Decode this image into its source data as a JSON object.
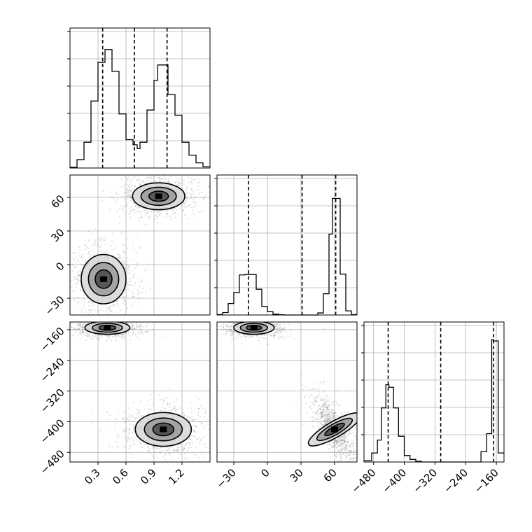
{
  "chart_data": {
    "type": "corner",
    "grid": true,
    "parameters": [
      {
        "range": [
          0.0,
          1.5
        ],
        "ticks": [
          0.3,
          0.6,
          0.9,
          1.2
        ],
        "tick_labels": [
          "0.3",
          "0.6",
          "0.9",
          "1.2"
        ],
        "quantiles": [
          0.35,
          0.69,
          1.04
        ]
      },
      {
        "range": [
          -45,
          80
        ],
        "ticks": [
          -30,
          0,
          30,
          60
        ],
        "tick_labels": [
          "−30",
          "0",
          "30",
          "60"
        ],
        "quantiles": [
          -17,
          31,
          61
        ]
      },
      {
        "range": [
          -505,
          -140
        ],
        "ticks": [
          -480,
          -400,
          -320,
          -240,
          -160
        ],
        "tick_labels": [
          "−480",
          "−400",
          "−320",
          "−240",
          "−160"
        ],
        "quantiles": [
          -442,
          -305,
          -167
        ]
      }
    ],
    "histograms": [
      {
        "param": 0,
        "edges": [
          0.0,
          0.075,
          0.15,
          0.225,
          0.3,
          0.33,
          0.375,
          0.45,
          0.525,
          0.6,
          0.675,
          0.72,
          0.75,
          0.825,
          0.9,
          0.94,
          0.975,
          1.05,
          1.125,
          1.2,
          1.275,
          1.35,
          1.425,
          1.5
        ],
        "counts": [
          0.005,
          0.065,
          0.2,
          0.52,
          0.82,
          0.82,
          0.92,
          0.75,
          0.42,
          0.22,
          0.18,
          0.15,
          0.2,
          0.45,
          0.68,
          0.8,
          0.8,
          0.57,
          0.41,
          0.2,
          0.1,
          0.04,
          0.01
        ],
        "max": 1.0
      },
      {
        "param": 1,
        "edges": [
          -45,
          -40,
          -35,
          -30,
          -25,
          -20,
          -15,
          -10,
          -5,
          0,
          5,
          10,
          15,
          20,
          25,
          30,
          35,
          40,
          45,
          50,
          55,
          58,
          61,
          65,
          70,
          75,
          80
        ],
        "counts": [
          0.01,
          0.06,
          0.28,
          0.55,
          0.98,
          0.99,
          0.99,
          0.63,
          0.21,
          0.08,
          0.02,
          0.005,
          0,
          0,
          0,
          0,
          0,
          0,
          0.05,
          0.52,
          1.98,
          2.85,
          2.85,
          1.0,
          0.1,
          0.01
        ],
        "max": 3.15
      },
      {
        "param": 2,
        "edges": [
          -505,
          -485,
          -470,
          -460,
          -448,
          -440,
          -428,
          -415,
          -400,
          -385,
          -370,
          -355,
          -340,
          -200,
          -185,
          -172,
          -168,
          -155,
          -140
        ],
        "counts": [
          0.01,
          0.07,
          0.17,
          0.42,
          0.6,
          0.58,
          0.42,
          0.2,
          0.05,
          0.02,
          0.005,
          0.0,
          0.0,
          0.08,
          0.22,
          0.95,
          0.94,
          0.07
        ],
        "max": 1.0
      }
    ],
    "joint": [
      {
        "x_param": 0,
        "y_param": 1,
        "modes": [
          {
            "mean": [
              0.95,
              61
            ],
            "sd": [
              0.14,
              6
            ],
            "corr": 0.0,
            "weight": 1.0
          },
          {
            "mean": [
              0.36,
              -13
            ],
            "sd": [
              0.12,
              11
            ],
            "corr": 0.0,
            "weight": 1.0
          }
        ],
        "contour_levels": [
          0.3,
          0.55,
          0.8
        ],
        "density_peak": "61"
      },
      {
        "x_param": 0,
        "y_param": 2,
        "modes": [
          {
            "mean": [
              0.4,
              -155
            ],
            "sd": [
              0.12,
              8.5
            ],
            "corr": 0.0,
            "weight": 1.0
          },
          {
            "mean": [
              1.0,
              -420
            ],
            "sd": [
              0.15,
              22
            ],
            "corr": 0.0,
            "weight": 1.0
          }
        ],
        "contour_levels": [
          0.3,
          0.55,
          0.8
        ]
      },
      {
        "x_param": 1,
        "y_param": 2,
        "modes": [
          {
            "mean": [
              -12,
              -155
            ],
            "sd": [
              9,
              8.5
            ],
            "corr": 0.0,
            "weight": 1.0
          },
          {
            "mean": [
              60,
              -420
            ],
            "sd": [
              6.5,
              30
            ],
            "corr": -0.72,
            "weight": 1.0
          }
        ],
        "contour_levels": [
          0.3,
          0.55,
          0.8
        ]
      }
    ],
    "scatter_seed": 7
  }
}
